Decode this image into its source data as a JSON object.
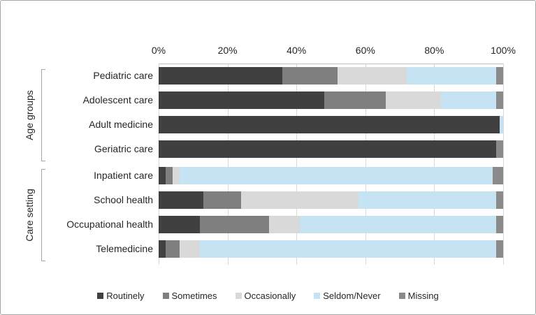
{
  "figure": {
    "background": "#ffffff",
    "border_color": "#a6a6a6",
    "grid_color": "#d9d9d9",
    "text_color": "#262626"
  },
  "chart_data": {
    "type": "bar",
    "orientation": "horizontal",
    "stacked": true,
    "unit": "percent",
    "title": "",
    "xlabel": "",
    "ylabel": "",
    "xlim": [
      0,
      100
    ],
    "grid": true,
    "legend_position": "bottom",
    "x_ticks": [
      "0%",
      "20%",
      "40%",
      "60%",
      "80%",
      "100%"
    ],
    "x_tick_values": [
      0,
      20,
      40,
      60,
      80,
      100
    ],
    "groups": [
      {
        "label": "Age groups",
        "categories": [
          "Pediatric care",
          "Adolescent care",
          "Adult medicine",
          "Geriatric care"
        ]
      },
      {
        "label": "Care setting",
        "categories": [
          "Inpatient care",
          "School health",
          "Occupational health",
          "Telemedicine"
        ]
      }
    ],
    "categories": [
      "Pediatric care",
      "Adolescent care",
      "Adult medicine",
      "Geriatric care",
      "Inpatient care",
      "School health",
      "Occupational health",
      "Telemedicine"
    ],
    "series": [
      {
        "name": "Routinely",
        "color": "#404040",
        "values": [
          36,
          48,
          99,
          98,
          2,
          13,
          12,
          2
        ]
      },
      {
        "name": "Sometimes",
        "color": "#7f7f7f",
        "values": [
          16,
          18,
          0,
          0,
          2,
          11,
          20,
          4
        ]
      },
      {
        "name": "Occasionally",
        "color": "#d9d9d9",
        "values": [
          20,
          16,
          0,
          0,
          2,
          34,
          9,
          6
        ]
      },
      {
        "name": "Seldom/Never",
        "color": "#c5e3f3",
        "values": [
          26,
          16,
          1,
          0,
          91,
          40,
          57,
          86
        ]
      },
      {
        "name": "Missing",
        "color": "#8a8a8a",
        "values": [
          2,
          2,
          0,
          2,
          3,
          2,
          2,
          2
        ]
      }
    ]
  }
}
